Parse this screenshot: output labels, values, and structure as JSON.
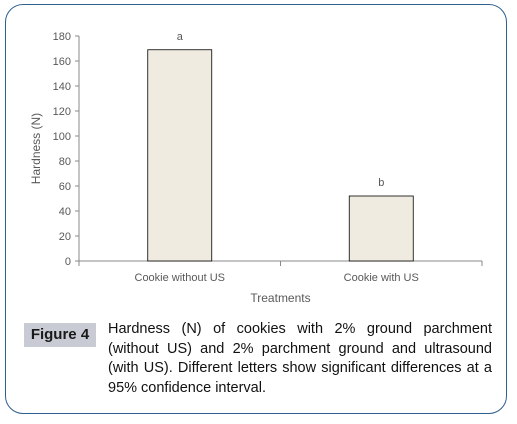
{
  "chart_data": {
    "type": "bar",
    "categories": [
      "Cookie without US",
      "Cookie with US"
    ],
    "values": [
      169,
      52
    ],
    "data_labels": [
      "a",
      "b"
    ],
    "ylabel": "Hardness (N)",
    "xlabel": "Treatments",
    "ylim": [
      0,
      180
    ],
    "yticks": [
      0,
      20,
      40,
      60,
      80,
      100,
      120,
      140,
      160,
      180
    ],
    "grid": false,
    "bar_color": "#efebe0",
    "bar_edge_color": "#000000"
  },
  "caption": {
    "label": "Figure 4",
    "text": "Hardness (N) of cookies with 2% ground parchment (without US) and 2% parchment ground and ultrasound (with US). Different letters show significant differences at a 95% confidence interval."
  },
  "colors": {
    "frame_border": "#2e5f8f",
    "label_background": "#c8cbd3"
  }
}
